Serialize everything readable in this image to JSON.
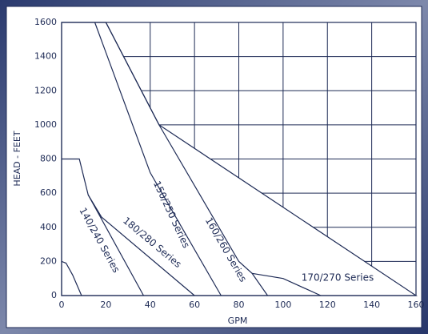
{
  "chart_data": {
    "type": "line",
    "xlabel": "GPM",
    "ylabel": "HEAD - FEET",
    "xlim": [
      0,
      160
    ],
    "ylim": [
      0,
      1600
    ],
    "xticks": [
      0,
      20,
      40,
      60,
      80,
      100,
      120,
      140,
      160
    ],
    "yticks": [
      0,
      200,
      400,
      600,
      800,
      1000,
      1200,
      1400,
      1600
    ],
    "grid": true,
    "color": "#1d2a55",
    "envelope": {
      "x": [
        0,
        0,
        20,
        44,
        160
      ],
      "values": [
        0,
        1600,
        1600,
        1000,
        0
      ]
    },
    "series": [
      {
        "x": [
          0,
          2,
          5,
          9
        ],
        "values": [
          200,
          190,
          120,
          0
        ]
      },
      {
        "name": "140/240 Series",
        "x": [
          0,
          8,
          12,
          37
        ],
        "values": [
          800,
          800,
          590,
          0
        ]
      },
      {
        "name": "180/280 Series",
        "x": [
          12,
          18,
          60
        ],
        "values": [
          590,
          460,
          0
        ]
      },
      {
        "name": "150/250 Series",
        "x": [
          15,
          40,
          72
        ],
        "values": [
          1600,
          720,
          0
        ]
      },
      {
        "name": "160/260 Series",
        "x": [
          20,
          44,
          80,
          86,
          93
        ],
        "values": [
          1600,
          1000,
          200,
          130,
          0
        ]
      },
      {
        "name": "170/270 Series",
        "x": [
          86,
          100,
          117
        ],
        "values": [
          130,
          100,
          0
        ]
      }
    ]
  }
}
